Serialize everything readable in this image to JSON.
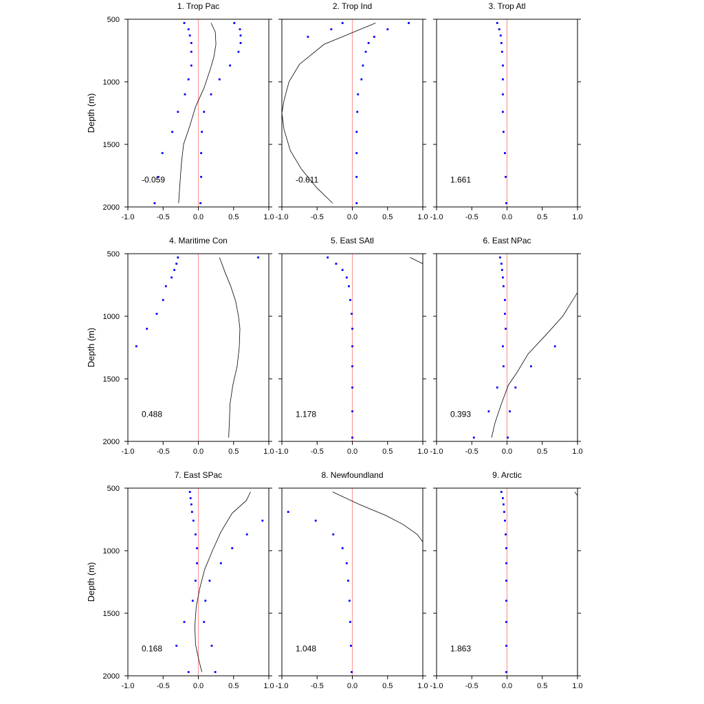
{
  "chart_data": {
    "type": "scatter",
    "ylabel": "Depth (m)",
    "xlim": [
      -1.0,
      1.0
    ],
    "ylim": [
      500,
      2000
    ],
    "y_inverted": true,
    "grid": false,
    "x_ticks": [
      "-1.0",
      "-0.5",
      "0.0",
      "0.5",
      "1.0"
    ],
    "y_ticks": [
      "500",
      "1000",
      "1500",
      "2000"
    ],
    "reference_line": {
      "x": 0,
      "color": "#ff9a9a"
    },
    "colors": {
      "points": "#0000ff",
      "line": "#000000",
      "reference": "#ff9a9a"
    },
    "panels": [
      {
        "title": "1. Trop Pac",
        "value_label": "-0.059",
        "curve": [
          [
            0.18,
            530
          ],
          [
            0.24,
            600
          ],
          [
            0.25,
            700
          ],
          [
            0.22,
            800
          ],
          [
            0.17,
            900
          ],
          [
            0.08,
            1050
          ],
          [
            -0.04,
            1200
          ],
          [
            -0.12,
            1350
          ],
          [
            -0.21,
            1500
          ],
          [
            -0.24,
            1650
          ],
          [
            -0.26,
            1800
          ],
          [
            -0.28,
            1970
          ]
        ],
        "points": [
          [
            -0.2,
            530
          ],
          [
            -0.14,
            580
          ],
          [
            -0.12,
            630
          ],
          [
            -0.1,
            690
          ],
          [
            -0.1,
            760
          ],
          [
            -0.1,
            870
          ],
          [
            -0.14,
            980
          ],
          [
            -0.19,
            1100
          ],
          [
            -0.29,
            1240
          ],
          [
            -0.37,
            1400
          ],
          [
            -0.51,
            1570
          ],
          [
            -0.57,
            1760
          ],
          [
            -0.62,
            1970
          ],
          [
            0.51,
            530
          ],
          [
            0.59,
            580
          ],
          [
            0.6,
            630
          ],
          [
            0.6,
            690
          ],
          [
            0.57,
            760
          ],
          [
            0.45,
            870
          ],
          [
            0.3,
            980
          ],
          [
            0.18,
            1100
          ],
          [
            0.08,
            1240
          ],
          [
            0.05,
            1400
          ],
          [
            0.04,
            1570
          ],
          [
            0.04,
            1760
          ],
          [
            0.03,
            1970
          ]
        ]
      },
      {
        "title": "2. Trop Ind",
        "value_label": "-0.611",
        "curve": [
          [
            0.33,
            530
          ],
          [
            -0.4,
            700
          ],
          [
            -0.75,
            860
          ],
          [
            -0.9,
            1000
          ],
          [
            -0.97,
            1150
          ],
          [
            -1.0,
            1250
          ],
          [
            -0.97,
            1380
          ],
          [
            -0.88,
            1550
          ],
          [
            -0.72,
            1700
          ],
          [
            -0.5,
            1850
          ],
          [
            -0.28,
            1970
          ]
        ],
        "points": [
          [
            -0.14,
            530
          ],
          [
            -0.3,
            580
          ],
          [
            -0.63,
            640
          ],
          [
            0.8,
            530
          ],
          [
            0.5,
            580
          ],
          [
            0.31,
            640
          ],
          [
            0.23,
            690
          ],
          [
            0.19,
            760
          ],
          [
            0.15,
            870
          ],
          [
            0.13,
            980
          ],
          [
            0.08,
            1100
          ],
          [
            0.07,
            1240
          ],
          [
            0.06,
            1400
          ],
          [
            0.06,
            1570
          ],
          [
            0.06,
            1760
          ],
          [
            0.06,
            1970
          ]
        ]
      },
      {
        "title": "3. Trop Atl",
        "value_label": "1.661",
        "curve": [],
        "points": [
          [
            -0.14,
            530
          ],
          [
            -0.11,
            580
          ],
          [
            -0.09,
            630
          ],
          [
            -0.08,
            690
          ],
          [
            -0.07,
            760
          ],
          [
            -0.06,
            870
          ],
          [
            -0.06,
            980
          ],
          [
            -0.06,
            1100
          ],
          [
            -0.06,
            1240
          ],
          [
            -0.05,
            1400
          ],
          [
            -0.03,
            1570
          ],
          [
            -0.02,
            1760
          ],
          [
            -0.01,
            1970
          ]
        ]
      },
      {
        "title": "4. Maritime Con",
        "value_label": "0.488",
        "curve": [
          [
            0.3,
            530
          ],
          [
            0.38,
            650
          ],
          [
            0.46,
            760
          ],
          [
            0.53,
            880
          ],
          [
            0.57,
            1000
          ],
          [
            0.59,
            1100
          ],
          [
            0.58,
            1250
          ],
          [
            0.55,
            1400
          ],
          [
            0.49,
            1550
          ],
          [
            0.45,
            1700
          ],
          [
            0.44,
            1850
          ],
          [
            0.43,
            1970
          ]
        ],
        "points": [
          [
            0.85,
            530
          ],
          [
            -0.29,
            530
          ],
          [
            -0.31,
            580
          ],
          [
            -0.34,
            630
          ],
          [
            -0.38,
            690
          ],
          [
            -0.46,
            760
          ],
          [
            -0.5,
            870
          ],
          [
            -0.59,
            980
          ],
          [
            -0.73,
            1100
          ],
          [
            -0.88,
            1240
          ]
        ]
      },
      {
        "title": "5. East SAtl",
        "value_label": "1.178",
        "curve": [
          [
            0.82,
            530
          ],
          [
            1.0,
            580
          ]
        ],
        "points": [
          [
            -0.35,
            530
          ],
          [
            -0.23,
            580
          ],
          [
            -0.14,
            630
          ],
          [
            -0.08,
            690
          ],
          [
            -0.05,
            760
          ],
          [
            -0.03,
            870
          ],
          [
            -0.01,
            980
          ],
          [
            0.0,
            1100
          ],
          [
            0.0,
            1240
          ],
          [
            0.0,
            1400
          ],
          [
            0.0,
            1570
          ],
          [
            0.0,
            1760
          ],
          [
            0.0,
            1970
          ]
        ]
      },
      {
        "title": "6. East NPac",
        "value_label": "0.393",
        "curve": [
          [
            1.0,
            810
          ],
          [
            0.79,
            1000
          ],
          [
            0.55,
            1150
          ],
          [
            0.3,
            1300
          ],
          [
            0.14,
            1450
          ],
          [
            0.02,
            1550
          ],
          [
            -0.08,
            1700
          ],
          [
            -0.17,
            1850
          ],
          [
            -0.22,
            1970
          ]
        ],
        "points": [
          [
            -0.1,
            530
          ],
          [
            -0.08,
            580
          ],
          [
            -0.07,
            630
          ],
          [
            -0.06,
            690
          ],
          [
            -0.05,
            760
          ],
          [
            -0.03,
            870
          ],
          [
            -0.03,
            980
          ],
          [
            -0.02,
            1100
          ],
          [
            0.68,
            1240
          ],
          [
            0.34,
            1400
          ],
          [
            0.12,
            1570
          ],
          [
            0.04,
            1760
          ],
          [
            0.01,
            1970
          ],
          [
            -0.06,
            1240
          ],
          [
            -0.05,
            1400
          ],
          [
            -0.14,
            1570
          ],
          [
            -0.26,
            1760
          ],
          [
            -0.47,
            1970
          ]
        ]
      },
      {
        "title": "7. East SPac",
        "value_label": "0.168",
        "curve": [
          [
            0.74,
            530
          ],
          [
            0.68,
            600
          ],
          [
            0.48,
            700
          ],
          [
            0.32,
            850
          ],
          [
            0.2,
            1000
          ],
          [
            0.09,
            1150
          ],
          [
            0.02,
            1300
          ],
          [
            -0.03,
            1450
          ],
          [
            -0.05,
            1600
          ],
          [
            -0.04,
            1750
          ],
          [
            0.01,
            1880
          ],
          [
            0.05,
            1970
          ]
        ],
        "points": [
          [
            -0.12,
            530
          ],
          [
            -0.11,
            580
          ],
          [
            -0.1,
            630
          ],
          [
            -0.09,
            690
          ],
          [
            -0.07,
            760
          ],
          [
            -0.04,
            870
          ],
          [
            -0.02,
            980
          ],
          [
            -0.02,
            1100
          ],
          [
            -0.04,
            1240
          ],
          [
            -0.08,
            1400
          ],
          [
            -0.2,
            1570
          ],
          [
            -0.31,
            1760
          ],
          [
            -0.14,
            1970
          ],
          [
            0.91,
            760
          ],
          [
            0.69,
            870
          ],
          [
            0.48,
            980
          ],
          [
            0.32,
            1100
          ],
          [
            0.16,
            1240
          ],
          [
            0.1,
            1400
          ],
          [
            0.08,
            1570
          ],
          [
            0.19,
            1760
          ],
          [
            0.24,
            1970
          ]
        ]
      },
      {
        "title": "8. Newfoundland",
        "value_label": "1.048",
        "curve": [
          [
            -0.28,
            530
          ],
          [
            0.1,
            630
          ],
          [
            0.48,
            720
          ],
          [
            0.72,
            790
          ],
          [
            0.92,
            870
          ],
          [
            1.0,
            930
          ]
        ],
        "points": [
          [
            -0.91,
            690
          ],
          [
            -0.52,
            760
          ],
          [
            -0.27,
            870
          ],
          [
            -0.14,
            980
          ],
          [
            -0.08,
            1100
          ],
          [
            -0.06,
            1240
          ],
          [
            -0.04,
            1400
          ],
          [
            -0.03,
            1570
          ],
          [
            -0.02,
            1760
          ],
          [
            -0.01,
            1970
          ]
        ]
      },
      {
        "title": "9. Arctic",
        "value_label": "1.863",
        "curve": [
          [
            0.96,
            530
          ],
          [
            1.0,
            560
          ]
        ],
        "points": [
          [
            -0.08,
            530
          ],
          [
            -0.06,
            580
          ],
          [
            -0.05,
            630
          ],
          [
            -0.04,
            690
          ],
          [
            -0.03,
            760
          ],
          [
            -0.02,
            870
          ],
          [
            -0.01,
            980
          ],
          [
            -0.01,
            1100
          ],
          [
            -0.01,
            1240
          ],
          [
            -0.01,
            1400
          ],
          [
            -0.01,
            1570
          ],
          [
            -0.01,
            1760
          ],
          [
            -0.01,
            1970
          ]
        ]
      }
    ]
  }
}
